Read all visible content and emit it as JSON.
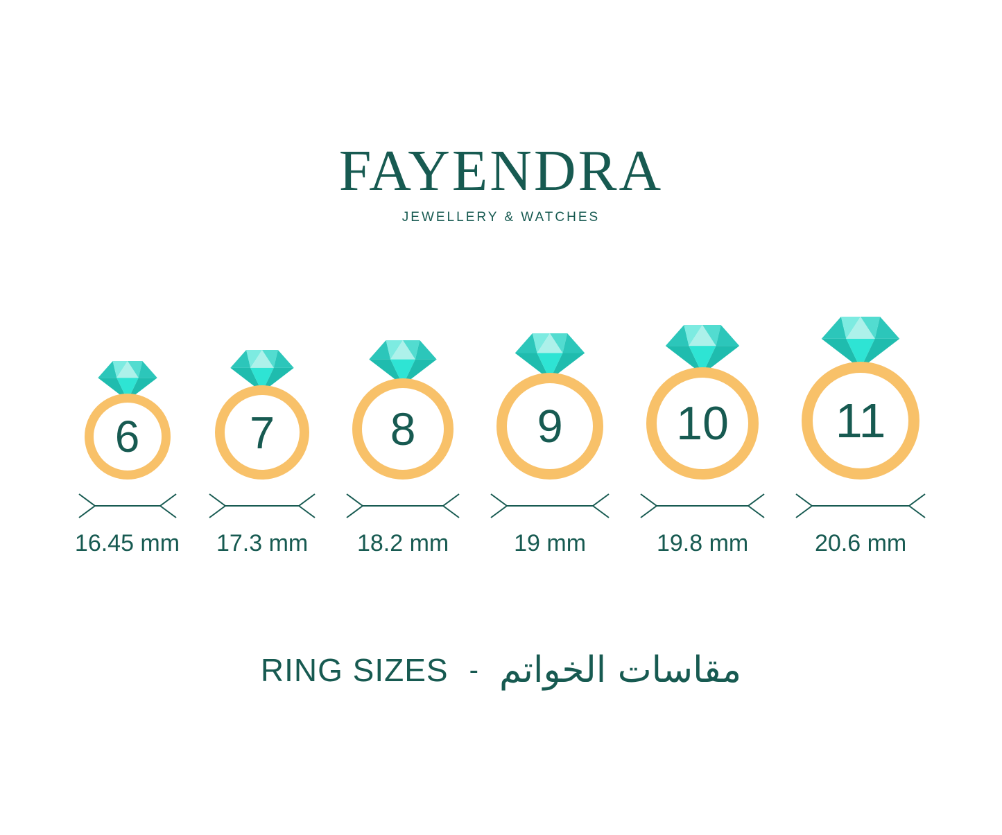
{
  "brand": {
    "name": "FAYENDRA",
    "tagline": "JEWELLERY & WATCHES"
  },
  "rings": [
    {
      "size": "6",
      "diameter_label": "16.45 mm"
    },
    {
      "size": "7",
      "diameter_label": "17.3 mm"
    },
    {
      "size": "8",
      "diameter_label": "18.2 mm"
    },
    {
      "size": "9",
      "diameter_label": "19 mm"
    },
    {
      "size": "10",
      "diameter_label": "19.8 mm"
    },
    {
      "size": "11",
      "diameter_label": "20.6 mm"
    }
  ],
  "footer": {
    "title_en": "RING SIZES",
    "separator": "-",
    "title_ar": "مقاسات الخواتم"
  },
  "colors": {
    "text_teal": "#175a51",
    "band_gold": "#f8c169",
    "diamond_facets": {
      "crown_outer": "#2cc6ba",
      "crown_light": "#7debe1",
      "crown_pale": "#adf1ea",
      "crown_mid": "#52dcd0",
      "pavilion_side": "#1fbcae",
      "pavilion_center": "#2ee4d4"
    }
  }
}
